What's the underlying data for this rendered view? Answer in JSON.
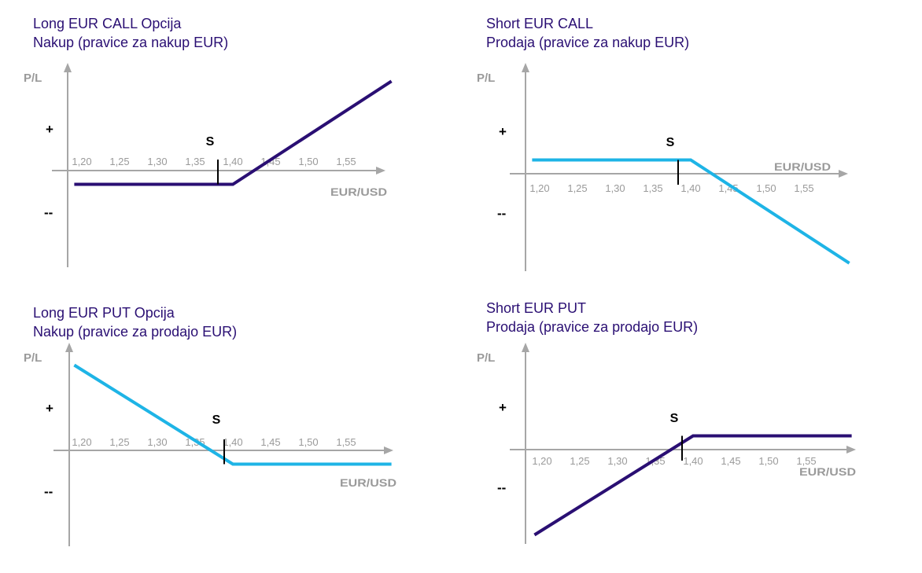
{
  "colors": {
    "title": "#2a0f73",
    "axis": "#a6a6a6",
    "dark_line": "#2a0f73",
    "light_line": "#1eb4e6"
  },
  "chart_data": [
    {
      "type": "line",
      "title_line1": "Long EUR CALL Opcija",
      "title_line2": "Nakup (pravice za nakup EUR)",
      "ylabel": "P/L",
      "xlabel": "EUR/USD",
      "plus_label": "+",
      "minus_label": "--",
      "strike_label": "S",
      "categories": [
        "1,20",
        "1,25",
        "1,30",
        "1,35",
        "1,40",
        "1,45",
        "1,50",
        "1,55"
      ],
      "strike": 1.39,
      "color": "#2a0f73",
      "series": [
        {
          "x": [
            1.18,
            1.39,
            1.6
          ],
          "y": [
            -1,
            -1,
            6.5
          ]
        }
      ],
      "ylim": [
        -5,
        6.5
      ]
    },
    {
      "type": "line",
      "title_line1": "Short EUR CALL",
      "title_line2": "Prodaja (pravice za nakup EUR)",
      "ylabel": "P/L",
      "xlabel": "EUR/USD",
      "plus_label": "+",
      "minus_label": "--",
      "strike_label": "S",
      "categories": [
        "1,20",
        "1,25",
        "1,30",
        "1,35",
        "1,40",
        "1,45",
        "1,50",
        "1,55"
      ],
      "strike": 1.39,
      "color": "#1eb4e6",
      "series": [
        {
          "x": [
            1.18,
            1.39,
            1.6
          ],
          "y": [
            1,
            1,
            -6.5
          ]
        }
      ],
      "ylim": [
        -6.5,
        5
      ]
    },
    {
      "type": "line",
      "title_line1": "Long EUR PUT Opcija",
      "title_line2": "Nakup (pravice za prodajo EUR)",
      "ylabel": "P/L",
      "xlabel": "EUR/USD",
      "plus_label": "+",
      "minus_label": "--",
      "strike_label": "S",
      "categories": [
        "1,20",
        "1,25",
        "1,30",
        "1,35",
        "1,40",
        "1,45",
        "1,50",
        "1,55"
      ],
      "strike": 1.39,
      "color": "#1eb4e6",
      "series": [
        {
          "x": [
            1.18,
            1.39,
            1.6
          ],
          "y": [
            6.2,
            -1,
            -1
          ]
        }
      ],
      "ylim": [
        -5,
        6.5
      ]
    },
    {
      "type": "line",
      "title_line1": "Short EUR PUT",
      "title_line2": "Prodaja (pravice za prodajo EUR)",
      "ylabel": "P/L",
      "xlabel": "EUR/USD",
      "plus_label": "+",
      "minus_label": "--",
      "strike_label": "S",
      "categories": [
        "1,20",
        "1,25",
        "1,30",
        "1,35",
        "1,40",
        "1,45",
        "1,50",
        "1,55"
      ],
      "strike": 1.39,
      "color": "#2a0f73",
      "series": [
        {
          "x": [
            1.18,
            1.39,
            1.6
          ],
          "y": [
            -6.2,
            1,
            1
          ]
        }
      ],
      "ylim": [
        -6.5,
        5
      ]
    }
  ]
}
